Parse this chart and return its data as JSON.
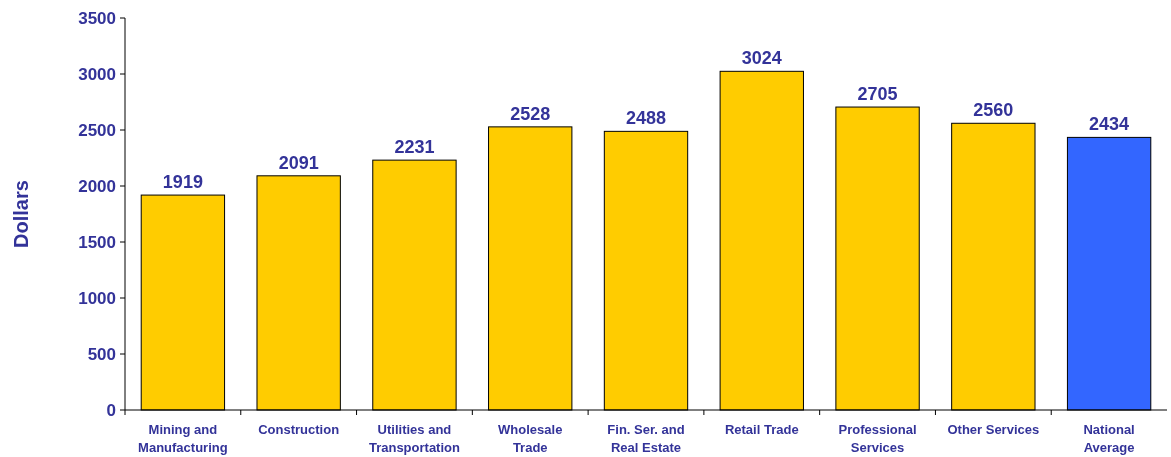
{
  "chart_data": {
    "type": "bar",
    "ylabel": "Dollars",
    "categories": [
      "Mining and Manufacturing",
      "Construction",
      "Utilities and Transportation",
      "Wholesale Trade",
      "Fin. Ser. and Real Estate",
      "Retail Trade",
      "Professional Services",
      "Other Services",
      "National Average"
    ],
    "values": [
      1919,
      2091,
      2231,
      2528,
      2488,
      3024,
      2705,
      2560,
      2434
    ],
    "colors": [
      "#ffcc00",
      "#ffcc00",
      "#ffcc00",
      "#ffcc00",
      "#ffcc00",
      "#ffcc00",
      "#ffcc00",
      "#ffcc00",
      "#3366ff"
    ],
    "ylim": [
      0,
      3500
    ],
    "yticks": [
      0,
      500,
      1000,
      1500,
      2000,
      2500,
      3000,
      3500
    ],
    "data_labels": true,
    "grid": false
  }
}
